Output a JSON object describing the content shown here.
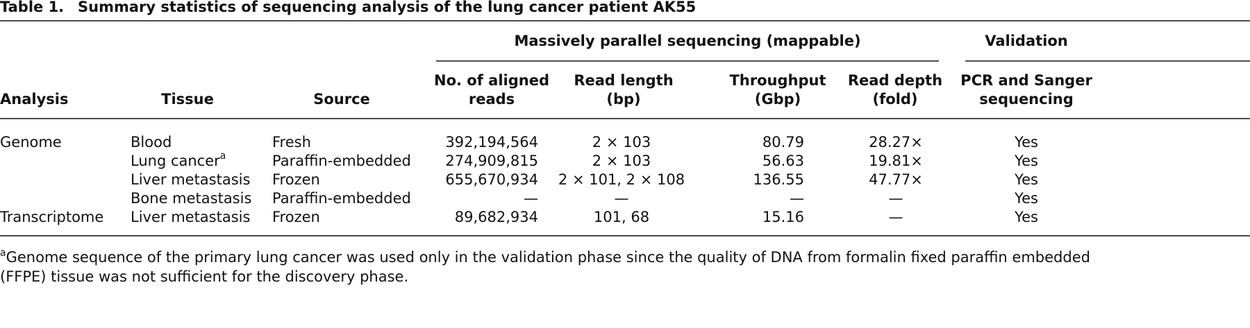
{
  "caption": {
    "label": "Table 1.",
    "title": "Summary statistics of sequencing analysis of the lung cancer patient AK55"
  },
  "table": {
    "group_headers": [
      "Massively parallel sequencing (mappable)",
      "Validation"
    ],
    "columns": [
      [
        "Analysis"
      ],
      [
        "Tissue"
      ],
      [
        "Source"
      ],
      [
        "No. of aligned",
        "reads"
      ],
      [
        "Read length",
        "(bp)"
      ],
      [
        "Throughput",
        "(Gbp)"
      ],
      [
        "Read depth",
        "(fold)"
      ],
      [
        "PCR and Sanger",
        "sequencing"
      ]
    ],
    "rows": [
      {
        "analysis": "Genome",
        "tissue": "Blood",
        "source": "Fresh",
        "reads": "392,194,564",
        "read_length": "2 × 103",
        "throughput": "80.79",
        "read_depth": "28.27×",
        "validation": "Yes"
      },
      {
        "tissue": "Lung cancer",
        "tissue_note": "a",
        "source": "Paraffin-embedded",
        "reads": "274,909,815",
        "read_length": "2 × 103",
        "throughput": "56.63",
        "read_depth": "19.81×",
        "validation": "Yes"
      },
      {
        "tissue": "Liver metastasis",
        "source": "Frozen",
        "reads": "655,670,934",
        "read_length": "2 × 101, 2 × 108",
        "throughput": "136.55",
        "read_depth": "47.77×",
        "validation": "Yes"
      },
      {
        "tissue": "Bone metastasis",
        "source": "Paraffin-embedded",
        "reads": "—",
        "read_length": "—",
        "throughput": "—",
        "read_depth": "—",
        "validation": "Yes"
      },
      {
        "analysis": "Transcriptome",
        "tissue": "Liver metastasis",
        "source": "Frozen",
        "reads": "89,682,934",
        "read_length": "101, 68",
        "throughput": "15.16",
        "read_depth": "—",
        "validation": "Yes"
      }
    ]
  },
  "footnote": {
    "marker": "a",
    "lines": [
      "Genome sequence of the primary lung cancer was used only in the validation phase since the quality of DNA from formalin fixed paraffin embedded",
      "(FFPE) tissue was not sufficient for the discovery phase."
    ]
  }
}
